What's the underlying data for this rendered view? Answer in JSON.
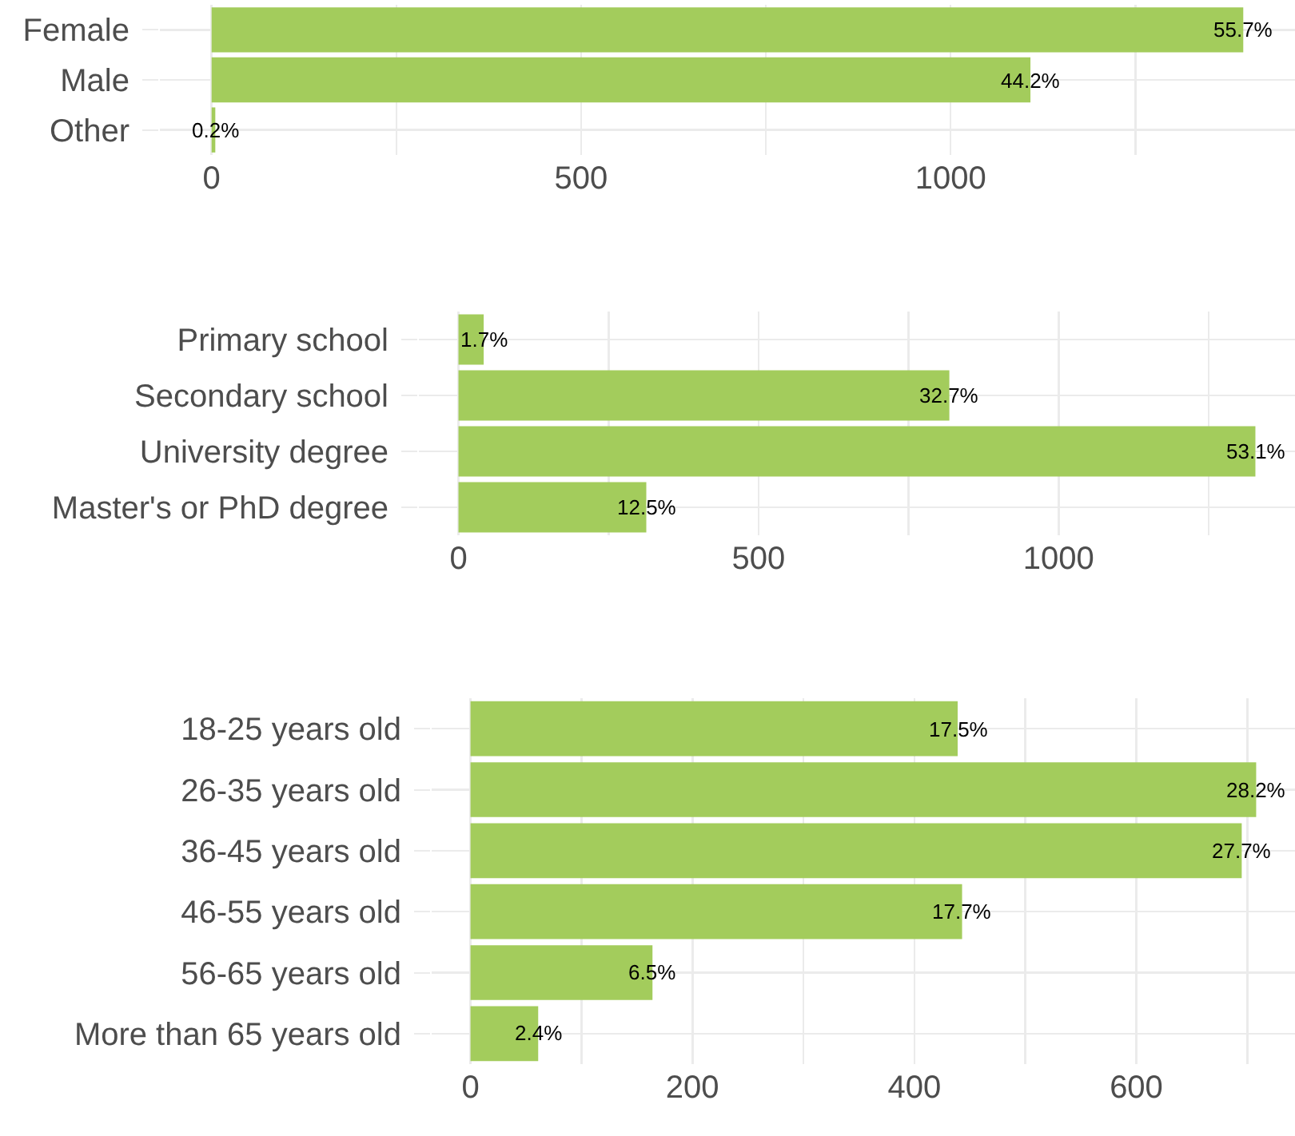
{
  "chart_data": [
    {
      "type": "bar",
      "orientation": "horizontal",
      "categories": [
        "Female",
        "Male",
        "Other"
      ],
      "values": [
        1396,
        1108,
        5
      ],
      "color": "#a3cc5c",
      "xlim": [
        -70,
        1466
      ],
      "xticks": [
        0,
        {
          "value": 250,
          "label": null
        },
        500,
        {
          "value": 750,
          "label": null
        },
        1000,
        {
          "value": 1250,
          "label": null
        }
      ],
      "grid": true,
      "annotations": [
        {
          "text": "55.7%",
          "x": 1396,
          "y": "Female"
        },
        {
          "text": "44.2%",
          "x": 1108,
          "y": "Male"
        },
        {
          "text": "0.2%",
          "x": 5,
          "y": "Other"
        }
      ]
    },
    {
      "type": "bar",
      "orientation": "horizontal",
      "categories": [
        "Primary school",
        "Secondary school",
        "University degree",
        "Master's or PhD degree"
      ],
      "values": [
        42,
        818,
        1328,
        313
      ],
      "color": "#a3cc5c",
      "xlim": [
        -66,
        1394
      ],
      "xticks": [
        0,
        {
          "value": 250,
          "label": null
        },
        500,
        {
          "value": 750,
          "label": null
        },
        1000,
        {
          "value": 1250,
          "label": null
        }
      ],
      "grid": true,
      "annotations": [
        {
          "text": "1.7%",
          "x": 42,
          "y": "Primary school"
        },
        {
          "text": "32.7%",
          "x": 818,
          "y": "Secondary school"
        },
        {
          "text": "53.1%",
          "x": 1328,
          "y": "University degree"
        },
        {
          "text": "12.5%",
          "x": 313,
          "y": "Master's or PhD degree"
        }
      ]
    },
    {
      "type": "bar",
      "orientation": "horizontal",
      "categories": [
        "18-25 years old",
        "26-35 years old",
        "36-45 years old",
        "46-55 years old",
        "56-65 years old",
        "More than 65 years old"
      ],
      "values": [
        439,
        708,
        695,
        443,
        164,
        61
      ],
      "color": "#a3cc5c",
      "xlim": [
        -35,
        743
      ],
      "xticks": [
        0,
        {
          "value": 100,
          "label": null
        },
        200,
        {
          "value": 300,
          "label": null
        },
        400,
        {
          "value": 500,
          "label": null
        },
        600,
        {
          "value": 700,
          "label": null
        }
      ],
      "grid": true,
      "annotations": [
        {
          "text": "17.5%",
          "x": 439,
          "y": "18-25 years old"
        },
        {
          "text": "28.2%",
          "x": 708,
          "y": "26-35 years old"
        },
        {
          "text": "27.7%",
          "x": 695,
          "y": "36-45 years old"
        },
        {
          "text": "17.7%",
          "x": 443,
          "y": "46-55 years old"
        },
        {
          "text": "6.5%",
          "x": 164,
          "y": "56-65 years old"
        },
        {
          "text": "2.4%",
          "x": 61,
          "y": "More than 65 years old"
        }
      ]
    }
  ]
}
